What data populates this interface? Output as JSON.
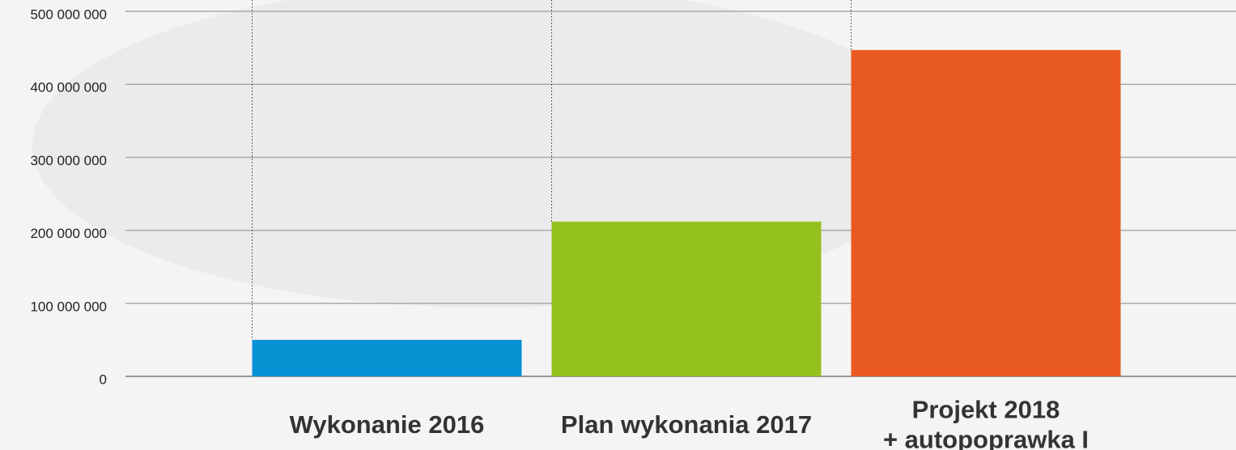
{
  "chart_data": {
    "type": "bar",
    "categories": [
      "Wykonanie 2016",
      "Plan wykonania 2017",
      "Projekt 2018\n+ autopoprawka I"
    ],
    "series": [
      {
        "name": null,
        "colors": [
          "#0791d3",
          "#95c11f",
          "#e95a22"
        ],
        "values": [
          50000000,
          212000000,
          447000000
        ]
      }
    ],
    "ylim": [
      0,
      500000000
    ],
    "yticks": [
      0,
      {
        "value": 100000000,
        "label": "100 000 000"
      },
      {
        "value": 200000000,
        "label": "200 000 000"
      },
      {
        "value": 300000000,
        "label": "300 000 000"
      },
      {
        "value": 400000000,
        "label": "400 000 000"
      },
      {
        "value": 500000000,
        "label": "500 000 000"
      }
    ],
    "grid": true
  }
}
